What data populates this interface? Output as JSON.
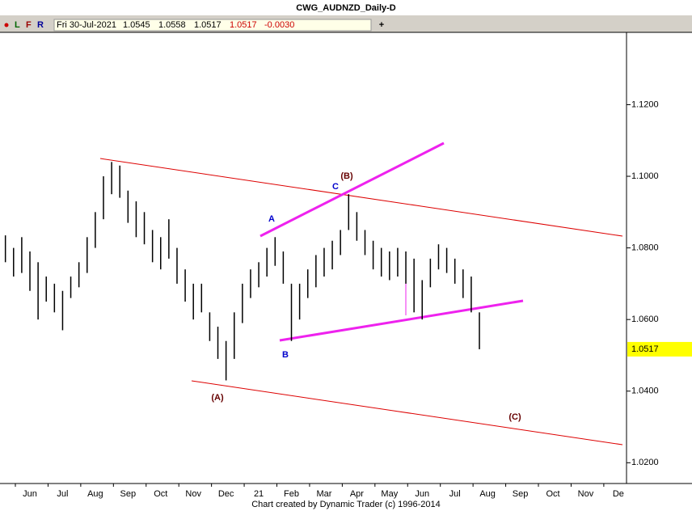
{
  "toolbar": {
    "markers": [
      "L",
      "F",
      "R"
    ],
    "date": "Fri 30-Jul-2021",
    "open": "1.0545",
    "high": "1.0558",
    "low": "1.0517",
    "close": "1.0517",
    "change": "-0.0030",
    "add": "+"
  },
  "footer": "Chart created by Dynamic Trader  (c) 1996-2014",
  "annotations": [
    {
      "text": "A",
      "color": "#0000cc"
    },
    {
      "text": "B",
      "color": "#0000cc"
    },
    {
      "text": "C",
      "color": "#0000cc"
    },
    {
      "text": "(A)",
      "color": "#660000"
    },
    {
      "text": "(B)",
      "color": "#660000"
    },
    {
      "text": "(C)",
      "color": "#660000"
    }
  ],
  "chart_data": {
    "type": "hl_bar",
    "title": "CWG_AUDNZD_Daily-D",
    "color": "#000000",
    "x": [
      -0.75,
      -0.5,
      -0.25,
      0,
      0.25,
      0.5,
      0.75,
      1,
      1.25,
      1.5,
      1.75,
      2,
      2.25,
      2.5,
      2.75,
      3,
      3.25,
      3.5,
      3.75,
      4,
      4.25,
      4.5,
      4.75,
      5,
      5.25,
      5.5,
      5.75,
      6,
      6.25,
      6.5,
      6.75,
      7,
      7.25,
      7.5,
      7.75,
      8,
      8.25,
      8.5,
      8.75,
      9,
      9.25,
      9.5,
      9.75,
      10,
      10.25,
      10.5,
      10.75,
      11,
      11.25,
      11.5,
      11.75,
      12,
      12.25,
      12.5,
      12.75,
      13,
      13.25,
      13.5,
      13.75
    ],
    "high": [
      1.0835,
      1.08,
      1.083,
      1.079,
      1.076,
      1.072,
      1.07,
      1.068,
      1.072,
      1.076,
      1.083,
      1.09,
      1.1,
      1.104,
      1.103,
      1.096,
      1.093,
      1.09,
      1.085,
      1.083,
      1.088,
      1.08,
      1.074,
      1.07,
      1.07,
      1.062,
      1.058,
      1.054,
      1.062,
      1.07,
      1.074,
      1.076,
      1.08,
      1.083,
      1.079,
      1.07,
      1.07,
      1.074,
      1.078,
      1.08,
      1.082,
      1.085,
      1.095,
      1.09,
      1.085,
      1.082,
      1.08,
      1.079,
      1.08,
      1.079,
      1.077,
      1.071,
      1.077,
      1.081,
      1.08,
      1.077,
      1.074,
      1.072,
      1.062
    ],
    "low": [
      1.076,
      1.072,
      1.073,
      1.068,
      1.06,
      1.065,
      1.062,
      1.057,
      1.066,
      1.069,
      1.073,
      1.08,
      1.088,
      1.095,
      1.094,
      1.087,
      1.083,
      1.081,
      1.076,
      1.074,
      1.077,
      1.07,
      1.065,
      1.06,
      1.062,
      1.054,
      1.049,
      1.043,
      1.049,
      1.059,
      1.066,
      1.069,
      1.072,
      1.075,
      1.07,
      1.054,
      1.06,
      1.066,
      1.069,
      1.072,
      1.074,
      1.078,
      1.085,
      1.082,
      1.078,
      1.074,
      1.072,
      1.071,
      1.072,
      1.07,
      1.062,
      1.06,
      1.069,
      1.074,
      1.073,
      1.07,
      1.066,
      1.062,
      1.0517
    ],
    "last_price": 1.0517,
    "xlim": [
      -0.915,
      18.25
    ],
    "xticks": [
      {
        "value": 0,
        "label": "Jun"
      },
      {
        "value": 1,
        "label": "Jul"
      },
      {
        "value": 2,
        "label": "Aug"
      },
      {
        "value": 3,
        "label": "Sep"
      },
      {
        "value": 4,
        "label": "Oct"
      },
      {
        "value": 5,
        "label": "Nov"
      },
      {
        "value": 6,
        "label": "Dec"
      },
      {
        "value": 7,
        "label": "21"
      },
      {
        "value": 8,
        "label": "Feb"
      },
      {
        "value": 9,
        "label": "Mar"
      },
      {
        "value": 10,
        "label": "Apr"
      },
      {
        "value": 11,
        "label": "May"
      },
      {
        "value": 12,
        "label": "Jun"
      },
      {
        "value": 13,
        "label": "Jul"
      },
      {
        "value": 14,
        "label": "Aug"
      },
      {
        "value": 15,
        "label": "Sep"
      },
      {
        "value": 16,
        "label": "Oct"
      },
      {
        "value": 17,
        "label": "Nov"
      },
      {
        "value": 18,
        "label": "De"
      }
    ],
    "ylim": [
      1.0142,
      1.1402
    ],
    "yticks": [
      {
        "value": 1.02,
        "label": "1.0200"
      },
      {
        "value": 1.04,
        "label": "1.0400"
      },
      {
        "value": 1.06,
        "label": "1.0600"
      },
      {
        "value": 1.08,
        "label": "1.0800"
      },
      {
        "value": 1.1,
        "label": "1.1000"
      },
      {
        "value": 1.12,
        "label": "1.1200"
      }
    ]
  }
}
